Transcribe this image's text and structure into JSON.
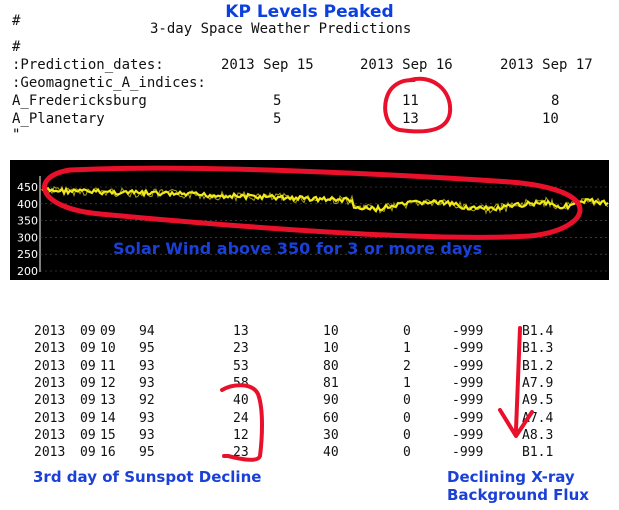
{
  "title": "KP Levels Peaked",
  "forecast": {
    "hash1": "#",
    "subtitle": "3-day Space Weather Predictions",
    "hash2": "#",
    "pred_label": ":Prediction_dates:",
    "dates": [
      "2013 Sep 15",
      "2013 Sep 16",
      "2013 Sep 17"
    ],
    "geo_label": ":Geomagnetic_A_indices:",
    "rows": [
      {
        "name": "A_Fredericksburg",
        "values": [
          "5",
          "11",
          "8"
        ]
      },
      {
        "name": "A_Planetary",
        "values": [
          "5",
          "13",
          "10"
        ]
      }
    ],
    "trail": "\""
  },
  "solar_wind": {
    "y_ticks": [
      "450",
      "400",
      "350",
      "300",
      "250",
      "200"
    ],
    "caption": "Solar Wind above 350 for 3 or more days",
    "colors": {
      "panel": "#000000",
      "trace": "#f2ea1a",
      "grid": "#5a5a5a",
      "tick_text": "#ffffff"
    }
  },
  "table": {
    "rows": [
      [
        "2013",
        "09",
        "09",
        "94",
        "13",
        "10",
        "0",
        "-999",
        "B1.4"
      ],
      [
        "2013",
        "09",
        "10",
        "95",
        "23",
        "10",
        "1",
        "-999",
        "B1.3"
      ],
      [
        "2013",
        "09",
        "11",
        "93",
        "53",
        "80",
        "2",
        "-999",
        "B1.2"
      ],
      [
        "2013",
        "09",
        "12",
        "93",
        "58",
        "81",
        "1",
        "-999",
        "A7.9"
      ],
      [
        "2013",
        "09",
        "13",
        "92",
        "40",
        "90",
        "0",
        "-999",
        "A9.5"
      ],
      [
        "2013",
        "09",
        "14",
        "93",
        "24",
        "60",
        "0",
        "-999",
        "A7.4"
      ],
      [
        "2013",
        "09",
        "15",
        "93",
        "12",
        "30",
        "0",
        "-999",
        "A8.3"
      ],
      [
        "2013",
        "09",
        "16",
        "95",
        "23",
        "40",
        "0",
        "-999",
        "B1.1"
      ]
    ]
  },
  "captions": {
    "sunspot": "3rd day of Sunspot Decline",
    "xray1": "Declining X-ray",
    "xray2": "Background Flux"
  },
  "colors": {
    "annotation": "#e8102a",
    "caption": "#1a40d8",
    "title": "#0b3fe0"
  }
}
